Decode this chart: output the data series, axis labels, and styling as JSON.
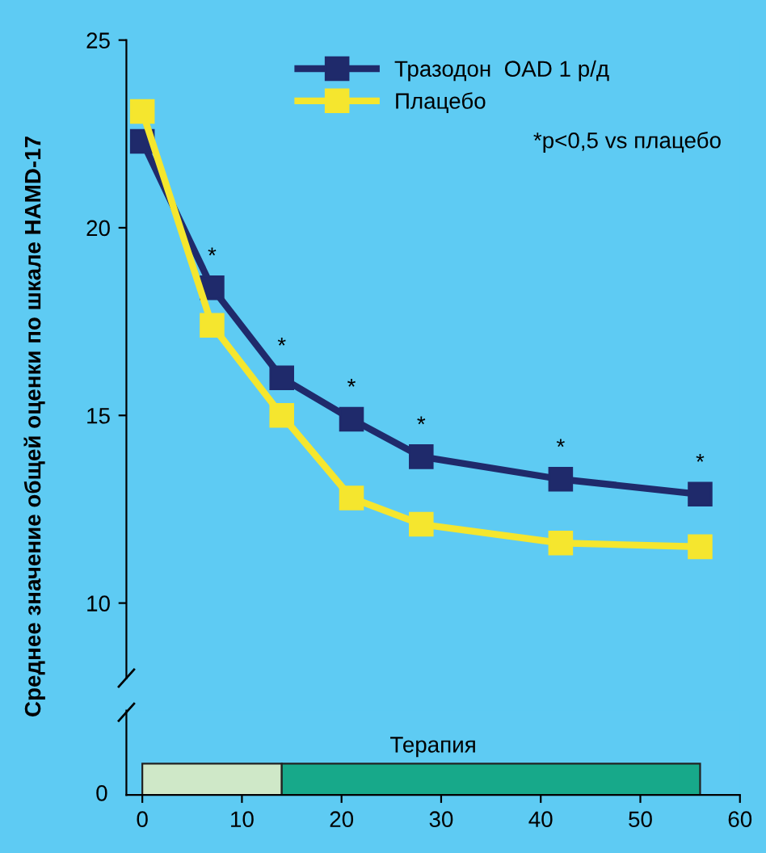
{
  "chart_data": [
    {
      "type": "line",
      "ylabel": "Среднее значение общей оценки по шкале HAMD-17",
      "x": [
        0,
        7,
        14,
        21,
        28,
        42,
        56
      ],
      "series": [
        {
          "name": "Тразодон  OAD 1 р/д",
          "color": "#1f2a6b",
          "values": [
            22.3,
            18.4,
            16.0,
            14.9,
            13.9,
            13.3,
            12.9
          ]
        },
        {
          "name": "Плацебо",
          "color": "#f5e62e",
          "values": [
            23.1,
            17.4,
            15.0,
            12.8,
            12.1,
            11.6,
            11.5
          ]
        }
      ],
      "xlim": [
        -1.6,
        60
      ],
      "ylim": [
        8,
        25
      ],
      "yticks": [
        10,
        15,
        20,
        25
      ],
      "tick_labels": "y",
      "marker": "square",
      "line_style": "solid",
      "legend": "top right",
      "grid": false,
      "annotations": [
        {
          "text": "*",
          "x": 7,
          "y": 18.4
        },
        {
          "text": "*",
          "x": 14,
          "y": 16.0
        },
        {
          "text": "*",
          "x": 21,
          "y": 14.9
        },
        {
          "text": "*",
          "x": 28,
          "y": 13.9
        },
        {
          "text": "*",
          "x": 42,
          "y": 13.3
        },
        {
          "text": "*",
          "x": 56,
          "y": 12.9
        },
        "*p<0,5 vs плацебо"
      ]
    },
    {
      "type": "bar",
      "orientation": "horizontal",
      "stacked": true,
      "categories": [
        null
      ],
      "series": [
        {
          "color": "#cfe8c8",
          "values": [
            14
          ]
        },
        {
          "color": "#17a98a",
          "values": [
            42
          ]
        }
      ],
      "xlim": [
        -1.6,
        60
      ],
      "xticks": [
        0,
        10,
        20,
        30,
        40,
        50,
        60
      ],
      "tick_labels": "x",
      "annotations": [
        "Терапия",
        "0"
      ]
    }
  ]
}
